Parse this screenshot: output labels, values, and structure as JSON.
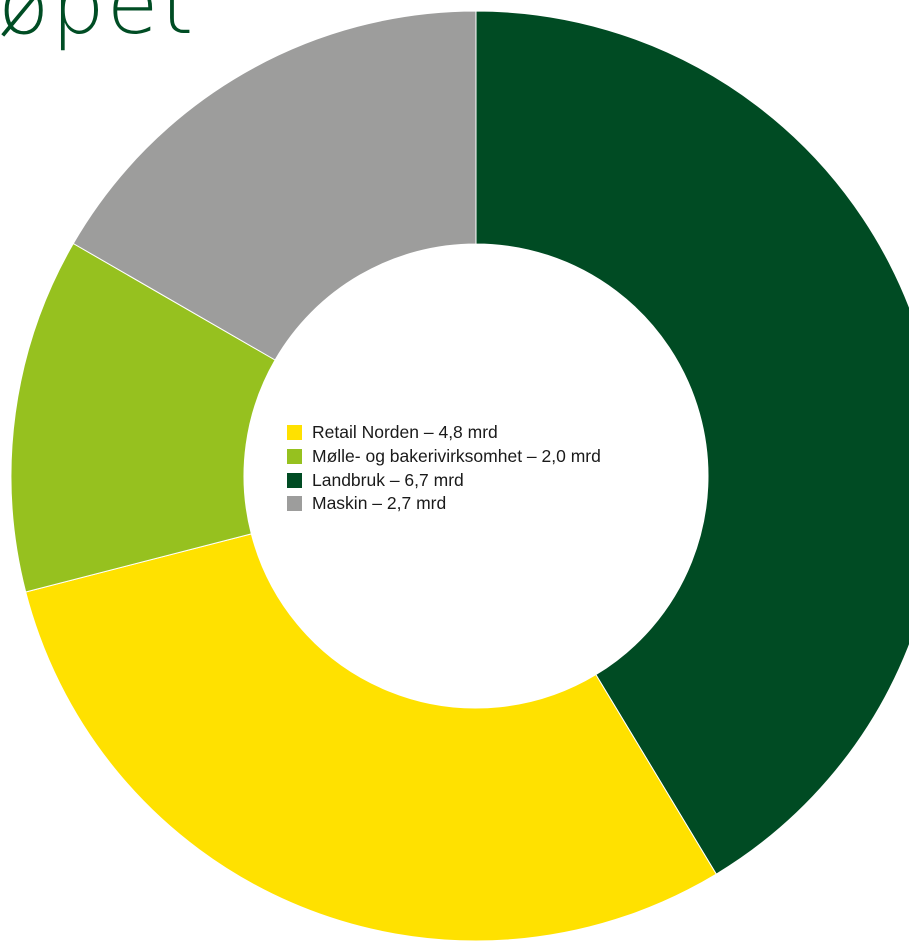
{
  "header": {
    "title_fragment": "øpet"
  },
  "chart_data": {
    "type": "pie",
    "style": "donut",
    "legend_position": "center",
    "unit": "mrd",
    "categories": [
      "Retail Norden",
      "Mølle- og bakerivirksomhet",
      "Landbruk",
      "Maskin"
    ],
    "values": [
      4.8,
      2.0,
      6.7,
      2.7
    ],
    "colors": [
      "#ffe100",
      "#96c11f",
      "#004b23",
      "#9d9d9c"
    ],
    "legend": [
      {
        "label": "Retail Norden – 4,8 mrd",
        "color": "#ffe100"
      },
      {
        "label": "Mølle- og bakerivirksomhet – 2,0 mrd",
        "color": "#96c11f"
      },
      {
        "label": "Landbruk – 6,7 mrd",
        "color": "#004b23"
      },
      {
        "label": "Maskin – 2,7 mrd",
        "color": "#9d9d9c"
      }
    ]
  }
}
